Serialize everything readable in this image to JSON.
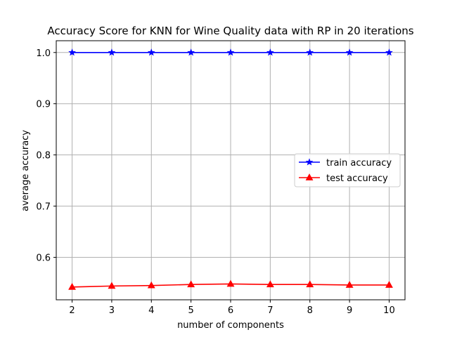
{
  "chart_data": {
    "type": "line",
    "title": "Accuracy Score for KNN for Wine Quality data with RP in 20 iterations",
    "xlabel": "number of components",
    "ylabel": "average accuracy",
    "x": [
      2,
      3,
      4,
      5,
      6,
      7,
      8,
      9,
      10
    ],
    "xlim": [
      1.6,
      10.4
    ],
    "ylim": [
      0.5171,
      1.023
    ],
    "yticks": [
      0.6,
      0.7,
      0.8,
      0.9,
      1.0
    ],
    "ytick_labels": [
      "0.6",
      "0.7",
      "0.8",
      "0.9",
      "1.0"
    ],
    "grid": true,
    "legend_position": "center-right",
    "series": [
      {
        "name": "train accuracy",
        "color": "#0000ff",
        "marker": "star",
        "values": [
          1.0,
          1.0,
          1.0,
          1.0,
          1.0,
          1.0,
          1.0,
          1.0,
          1.0
        ]
      },
      {
        "name": "test accuracy",
        "color": "#ff0000",
        "marker": "triangle",
        "values": [
          0.542,
          0.544,
          0.545,
          0.547,
          0.548,
          0.547,
          0.547,
          0.546,
          0.546
        ]
      }
    ]
  }
}
